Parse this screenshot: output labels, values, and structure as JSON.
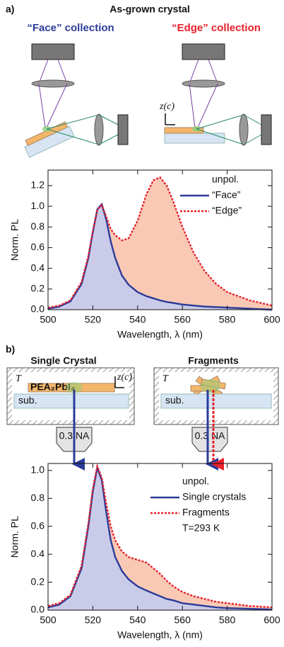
{
  "panel_a": {
    "label": "a)",
    "title": "As-grown crystal",
    "face_heading": "“Face” collection",
    "edge_heading": "“Edge” collection",
    "axis_label": "z(c)"
  },
  "panel_b": {
    "label": "b)",
    "left_heading": "Single Crystal",
    "right_heading": "Fragments",
    "left_temp": "T",
    "right_temp": "T",
    "crystal": "PEA₂PbI₄",
    "left_substrate": "sub.",
    "right_substrate": "sub.",
    "left_objective": "0.3 NA",
    "right_objective": "0.3 NA",
    "axis_label": "z(c)"
  },
  "chart_data": [
    {
      "type": "line",
      "xlabel": "Wavelength, λ (nm)",
      "ylabel": "Norm. PL",
      "legend_title": "unpol.",
      "legend": "upper right",
      "xlim": [
        500,
        600
      ],
      "xticks": [
        500,
        520,
        540,
        560,
        580,
        600
      ],
      "ylim": [
        0,
        1.35
      ],
      "yticks": [
        {
          "value": 0,
          "label": "0.0"
        },
        {
          "value": 0.2,
          "label": "0.2"
        },
        {
          "value": 0.4,
          "label": "0.4"
        },
        {
          "value": 0.6,
          "label": "0.6"
        },
        {
          "value": 0.8,
          "label": "0.8"
        },
        {
          "value": 1,
          "label": "1.0"
        },
        {
          "value": 1.2,
          "label": "1.2"
        }
      ],
      "x": [
        500,
        505,
        510,
        515,
        518,
        520,
        522,
        524,
        526,
        528,
        530,
        533,
        536,
        540,
        544,
        547,
        550,
        553,
        556,
        560,
        565,
        570,
        575,
        580,
        590,
        600
      ],
      "series": [
        {
          "name": "“Face”",
          "color": "#2b3b98",
          "fill": "#c9cbe8",
          "dash": false,
          "values": [
            0.01,
            0.03,
            0.08,
            0.25,
            0.5,
            0.75,
            0.97,
            1.02,
            0.87,
            0.66,
            0.5,
            0.33,
            0.24,
            0.17,
            0.13,
            0.11,
            0.09,
            0.075,
            0.065,
            0.05,
            0.04,
            0.03,
            0.025,
            0.02,
            0.01,
            0.0
          ]
        },
        {
          "name": "“Edge”",
          "color": "#e8202a",
          "fill": "#f9c9b6",
          "dash": true,
          "values": [
            0.02,
            0.04,
            0.09,
            0.27,
            0.52,
            0.76,
            0.97,
            1.01,
            0.9,
            0.78,
            0.72,
            0.67,
            0.69,
            0.86,
            1.12,
            1.25,
            1.28,
            1.2,
            1.04,
            0.8,
            0.55,
            0.37,
            0.25,
            0.17,
            0.09,
            0.04
          ]
        }
      ]
    },
    {
      "type": "line",
      "xlabel": "Wavelength, λ (nm)",
      "ylabel": "Norm. PL",
      "legend_title": "unpol.",
      "legend": "upper right",
      "annotation": "T=293 K",
      "xlim": [
        500,
        600
      ],
      "xticks": [
        500,
        520,
        540,
        560,
        580,
        600
      ],
      "ylim": [
        0,
        1.05
      ],
      "yticks": [
        {
          "value": 0,
          "label": "0.0"
        },
        {
          "value": 0.2,
          "label": "0.2"
        },
        {
          "value": 0.4,
          "label": "0.4"
        },
        {
          "value": 0.6,
          "label": "0.6"
        },
        {
          "value": 0.8,
          "label": "0.8"
        },
        {
          "value": 1,
          "label": "1.0"
        }
      ],
      "x": [
        500,
        505,
        510,
        515,
        518,
        520,
        522,
        524,
        526,
        528,
        530,
        533,
        536,
        540,
        544,
        547,
        550,
        553,
        556,
        560,
        565,
        570,
        575,
        580,
        590,
        600
      ],
      "series": [
        {
          "name": "Single crystals",
          "color": "#2b3b98",
          "fill": "#c9cbe8",
          "dash": false,
          "values": [
            0.02,
            0.04,
            0.1,
            0.3,
            0.6,
            0.85,
            1.02,
            0.93,
            0.7,
            0.5,
            0.38,
            0.28,
            0.22,
            0.17,
            0.14,
            0.12,
            0.1,
            0.08,
            0.07,
            0.05,
            0.04,
            0.03,
            0.02,
            0.015,
            0.01,
            0.005
          ]
        },
        {
          "name": "Fragments",
          "color": "#e8202a",
          "fill": "#f9c9b6",
          "dash": true,
          "values": [
            0.03,
            0.05,
            0.11,
            0.32,
            0.62,
            0.87,
            1.03,
            0.95,
            0.76,
            0.6,
            0.5,
            0.42,
            0.38,
            0.36,
            0.34,
            0.3,
            0.26,
            0.21,
            0.17,
            0.13,
            0.1,
            0.08,
            0.06,
            0.05,
            0.03,
            0.02
          ]
        }
      ]
    }
  ]
}
